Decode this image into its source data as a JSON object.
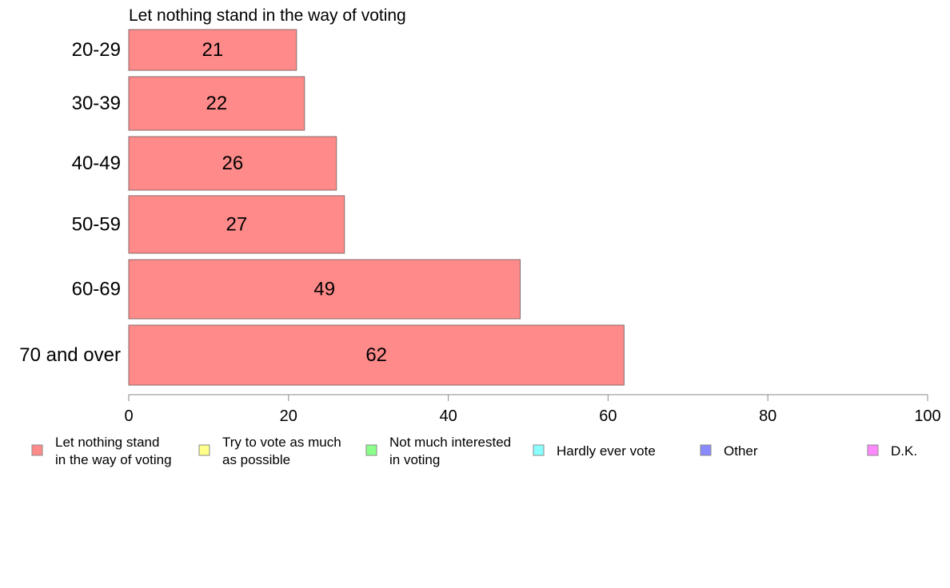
{
  "chart_data": {
    "type": "bar",
    "orientation": "horizontal",
    "title": "Let nothing stand in the way of voting",
    "categories": [
      "20-29",
      "30-39",
      "40-49",
      "50-59",
      "60-69",
      "70 and over"
    ],
    "values": [
      21,
      22,
      26,
      27,
      49,
      62
    ],
    "value_labels": [
      "21",
      "22",
      "26",
      "27",
      "49",
      "62"
    ],
    "xlim": [
      0,
      100
    ],
    "x_ticks": [
      0,
      20,
      40,
      60,
      80,
      100
    ],
    "x_tick_labels": [
      "0",
      "20",
      "40",
      "60",
      "80",
      "100"
    ],
    "bar_color": "#ff8a8a",
    "bar_stroke": "#8a6a6a",
    "axis_color": "#8a8a8a",
    "grid": false,
    "legend_position": "bottom",
    "legend": [
      {
        "lines": [
          "Let nothing stand",
          "in the way of voting"
        ],
        "color": "#ff8a8a"
      },
      {
        "lines": [
          "Try to vote as much",
          "as possible"
        ],
        "color": "#ffff8a"
      },
      {
        "lines": [
          "Not much interested",
          "in voting"
        ],
        "color": "#8aff8a"
      },
      {
        "lines": [
          "Hardly ever vote"
        ],
        "color": "#8affff"
      },
      {
        "lines": [
          "Other"
        ],
        "color": "#8a8aff"
      },
      {
        "lines": [
          "D.K."
        ],
        "color": "#ff8aff"
      }
    ]
  }
}
